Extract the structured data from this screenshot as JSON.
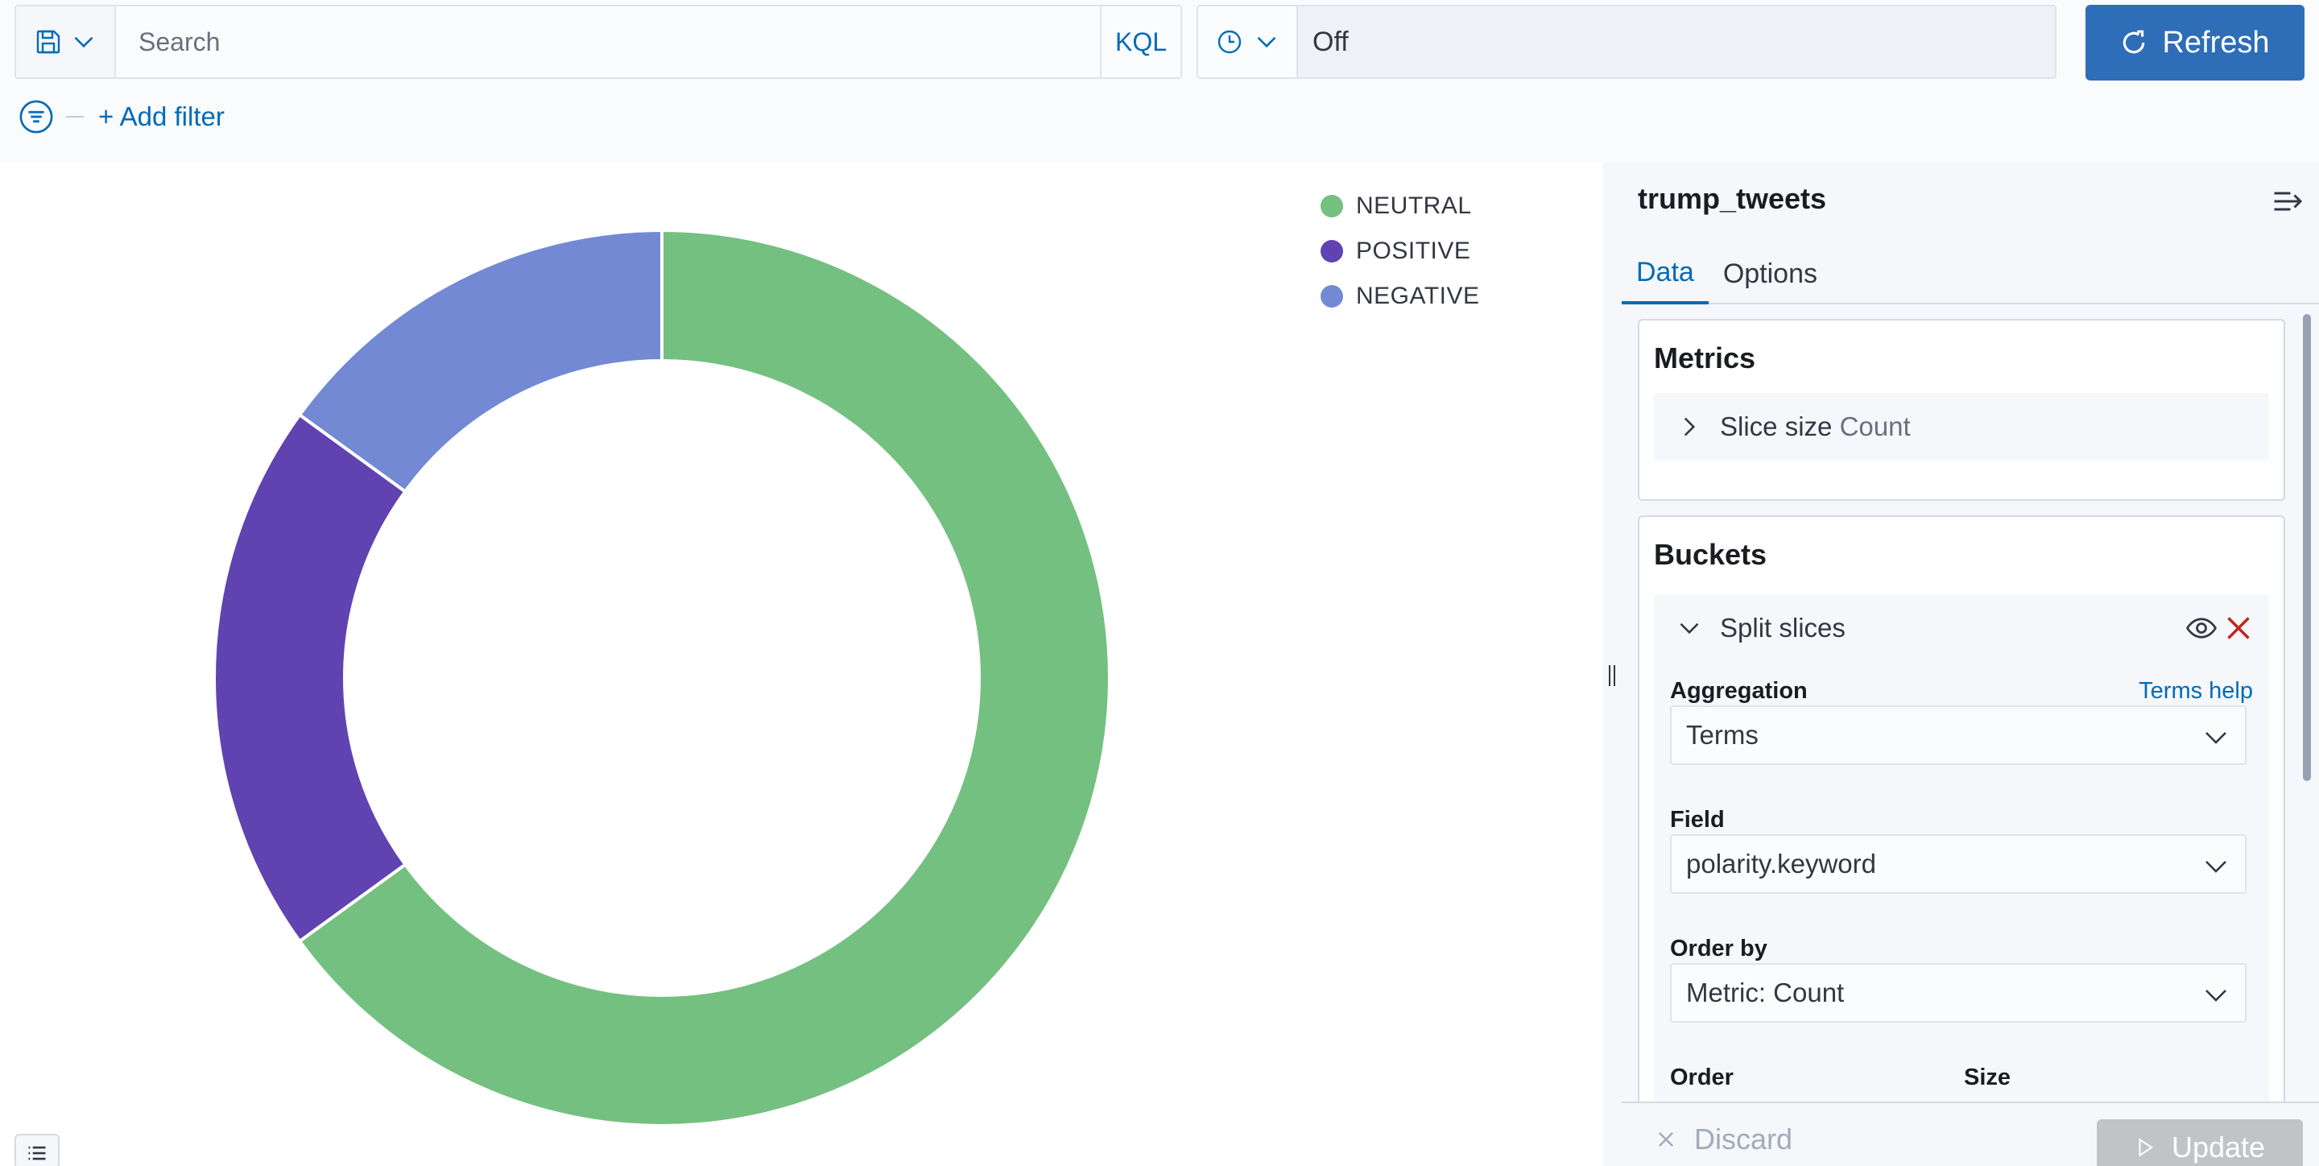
{
  "query_bar": {
    "search_placeholder": "Search",
    "language_label": "KQL",
    "refresh_interval": "Off",
    "refresh_label": "Refresh",
    "add_filter_label": "+ Add filter"
  },
  "colors": {
    "accent": "#006bb8",
    "refresh_button": "#2e6db7",
    "neutral": "#74c080",
    "positive": "#6043b1",
    "negative": "#7389d3",
    "remove_icon": "#bd271e"
  },
  "chart_data": {
    "type": "pie",
    "donut": true,
    "categories": [
      "NEUTRAL",
      "POSITIVE",
      "NEGATIVE"
    ],
    "values": [
      65,
      20,
      15
    ],
    "colors": [
      "#74c080",
      "#6043b1",
      "#7389d3"
    ],
    "legend_position": "top-right"
  },
  "sidebar": {
    "index_title": "trump_tweets",
    "tabs": [
      {
        "label": "Data",
        "active": true
      },
      {
        "label": "Options",
        "active": false
      }
    ],
    "metrics": {
      "title": "Metrics",
      "item_label": "Slice size",
      "item_sub": "Count"
    },
    "buckets": {
      "title": "Buckets",
      "item_label": "Split slices",
      "aggregation_label": "Aggregation",
      "aggregation_help": "Terms help",
      "aggregation_value": "Terms",
      "field_label": "Field",
      "field_value": "polarity.keyword",
      "order_by_label": "Order by",
      "order_by_value": "Metric: Count",
      "order_label": "Order",
      "size_label": "Size"
    },
    "footer": {
      "discard_label": "Discard",
      "update_label": "Update"
    }
  }
}
